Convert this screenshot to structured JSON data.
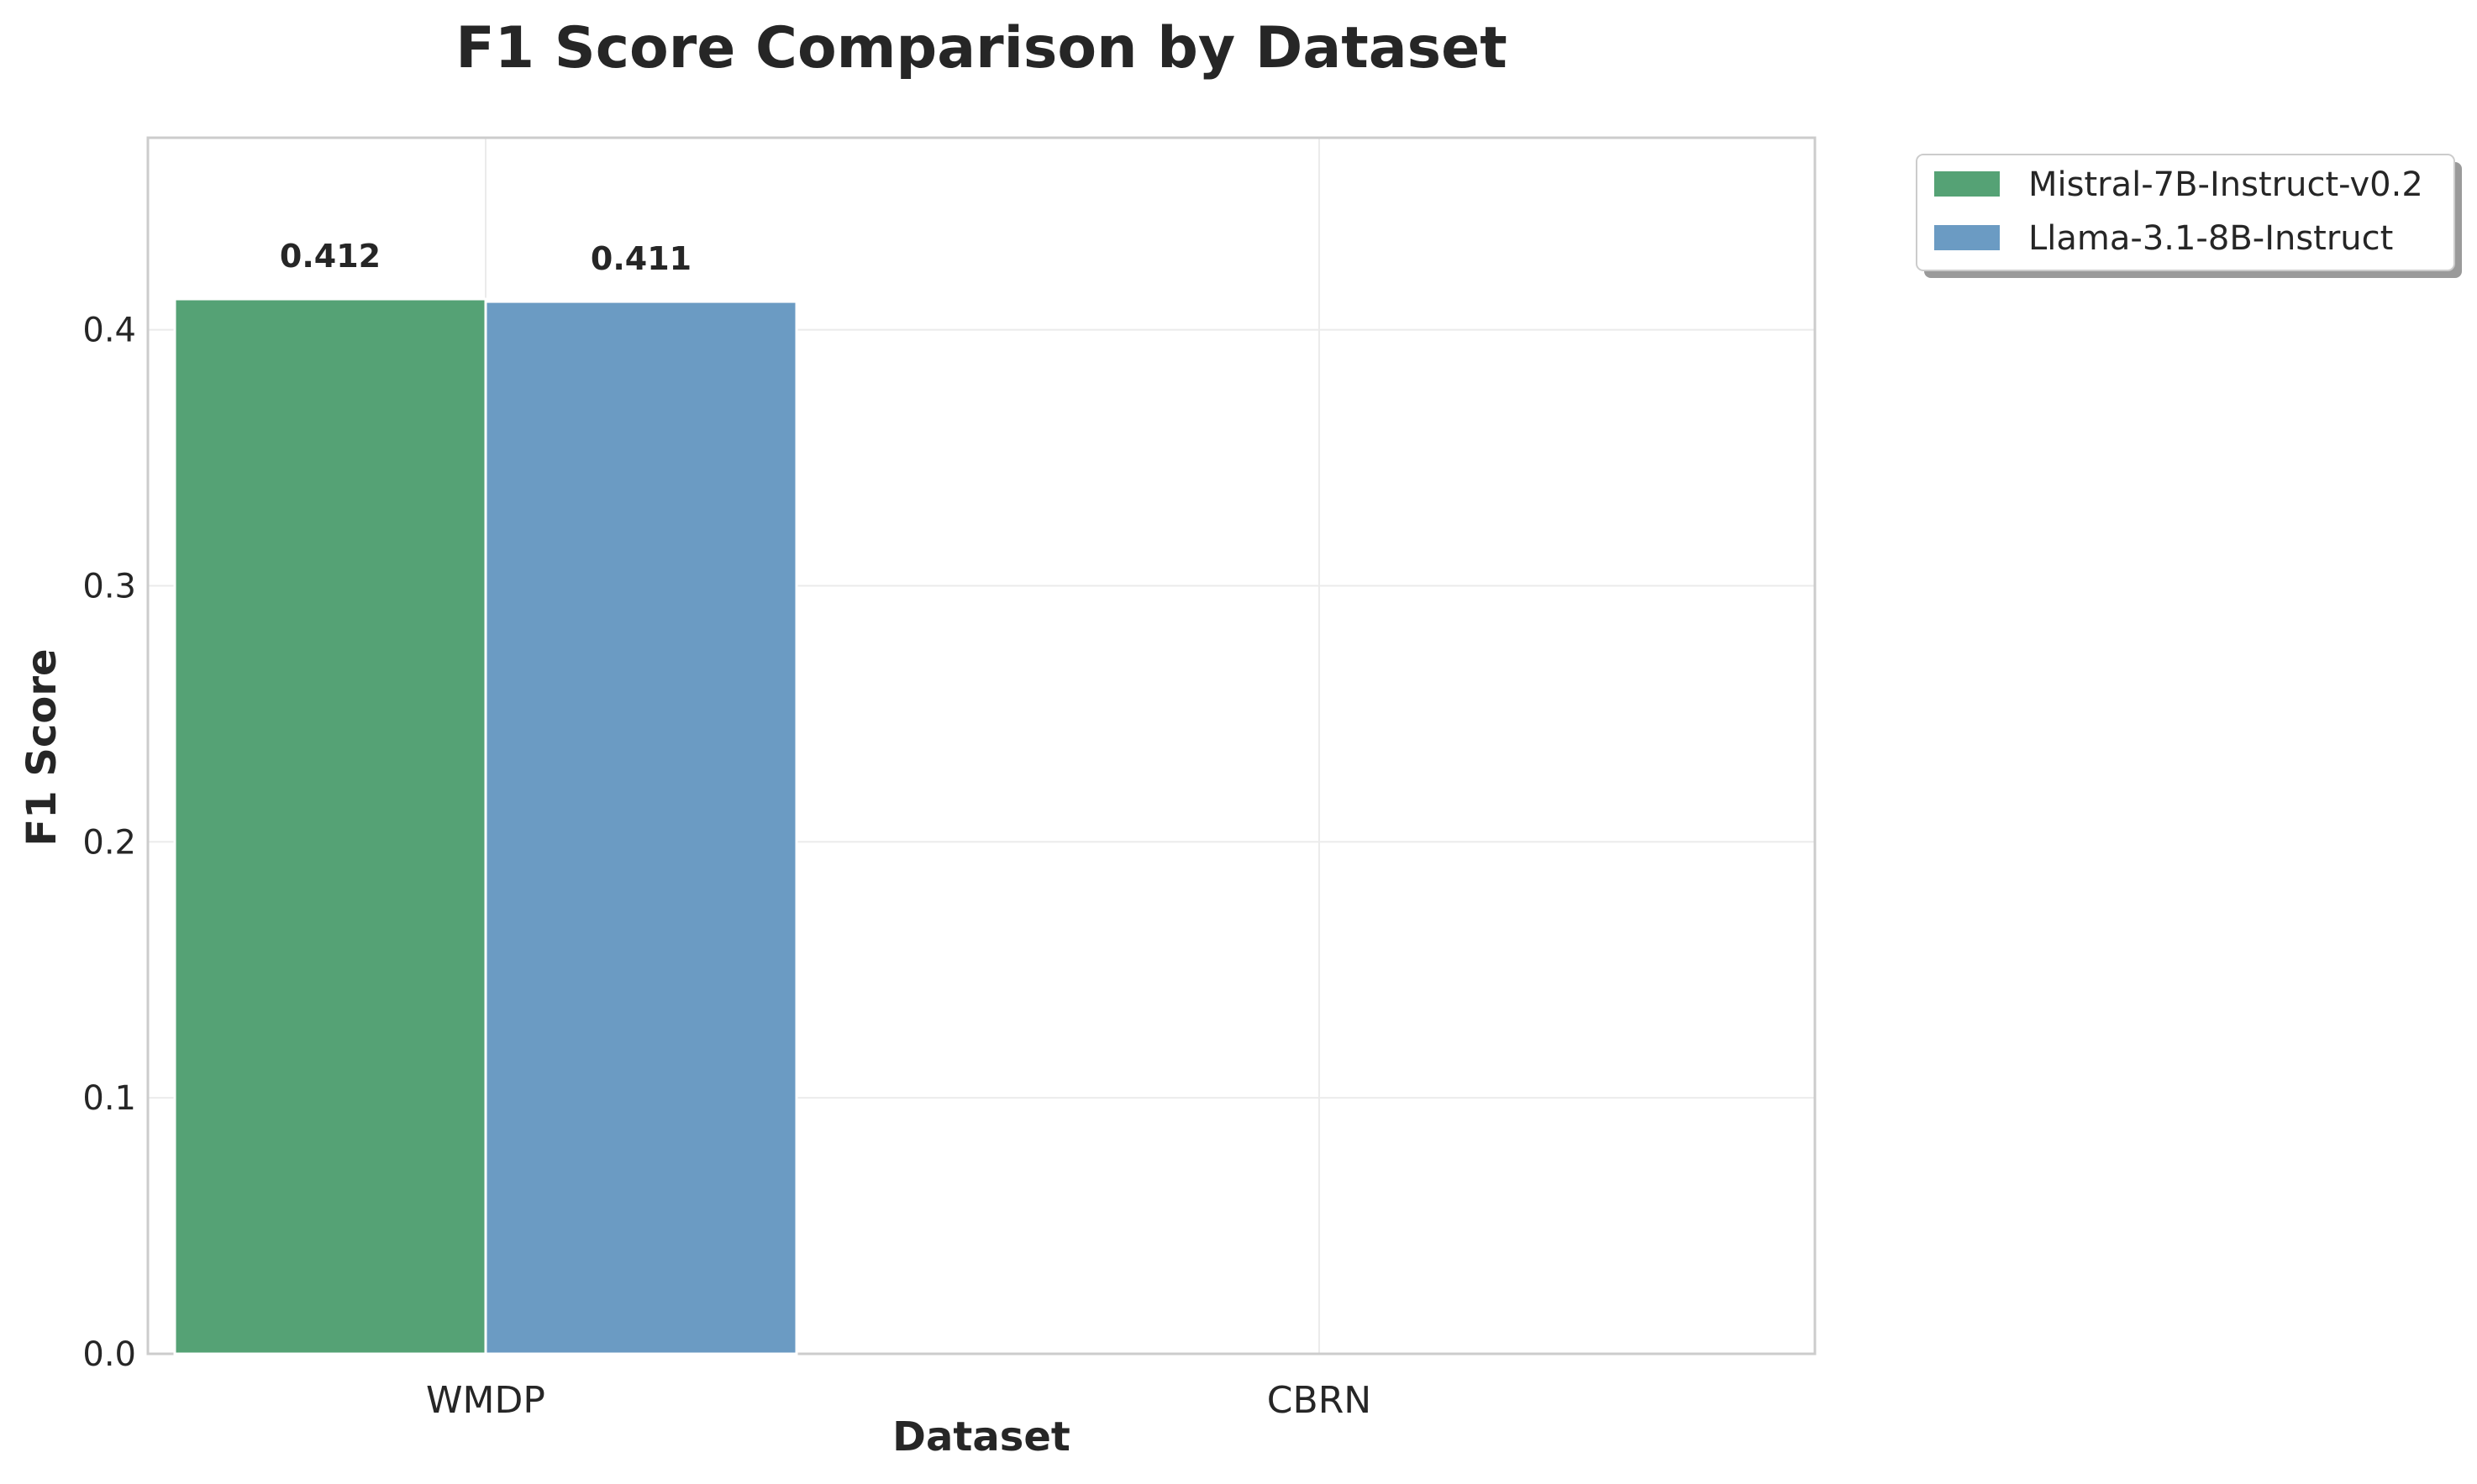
{
  "chart_data": {
    "type": "bar",
    "title": "F1 Score Comparison by Dataset",
    "xlabel": "Dataset",
    "ylabel": "F1 Score",
    "categories": [
      "WMDP",
      "CBRN"
    ],
    "series": [
      {
        "name": "Mistral-7B-Instruct-v0.2",
        "color": "#55a275",
        "values": [
          0.412,
          null
        ],
        "labels": [
          "0.412",
          null
        ]
      },
      {
        "name": "Llama-3.1-8B-Instruct",
        "color": "#6b9bc3",
        "values": [
          0.411,
          null
        ],
        "labels": [
          "0.411",
          null
        ]
      }
    ],
    "ylim": [
      0,
      0.475
    ],
    "yticks": [
      0.0,
      0.1,
      0.2,
      0.3,
      0.4
    ],
    "ytick_labels": [
      "0.0",
      "0.1",
      "0.2",
      "0.3",
      "0.4"
    ],
    "grid": true,
    "legend": "upper right, outside plot area"
  }
}
